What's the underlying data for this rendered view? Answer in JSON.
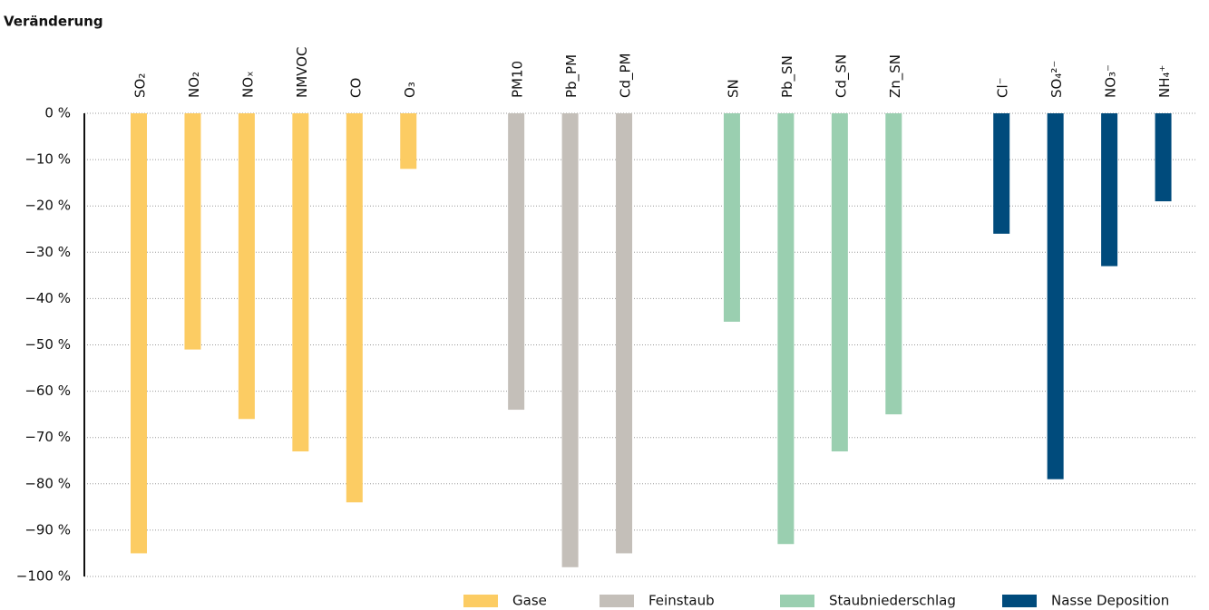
{
  "chart_data": {
    "type": "bar",
    "title": "Veränderung",
    "categories": [
      "SO₂",
      "NO₂",
      "NOₓ",
      "NMVOC",
      "CO",
      "O₃",
      null,
      "PM10",
      "Pb_PM",
      "Cd_PM",
      null,
      "SN",
      "Pb_SN",
      "Cd_SN",
      "Zn_SN",
      null,
      "Cl⁻",
      "SO₄²⁻",
      "NO₃⁻",
      "NH₄⁺"
    ],
    "series": [
      {
        "name": "Gase",
        "color": "#fccc63",
        "values": [
          -95,
          -51,
          -66,
          -73,
          -84,
          -12,
          null,
          null,
          null,
          null,
          null,
          null,
          null,
          null,
          null,
          null,
          null,
          null,
          null,
          null
        ]
      },
      {
        "name": "Feinstaub",
        "color": "#c4bfb9",
        "values": [
          null,
          null,
          null,
          null,
          null,
          null,
          null,
          -64,
          -98,
          -95,
          null,
          null,
          null,
          null,
          null,
          null,
          null,
          null,
          null,
          null
        ]
      },
      {
        "name": "Staubniederschlag",
        "color": "#9acfb0",
        "values": [
          null,
          null,
          null,
          null,
          null,
          null,
          null,
          null,
          null,
          null,
          null,
          -45,
          -93,
          -73,
          -65,
          null,
          null,
          null,
          null,
          null
        ]
      },
      {
        "name": "Nasse Deposition",
        "color": "#004b7c",
        "values": [
          null,
          null,
          null,
          null,
          null,
          null,
          null,
          null,
          null,
          null,
          null,
          null,
          null,
          null,
          null,
          null,
          -26,
          -79,
          -33,
          -19
        ]
      }
    ],
    "ylim": [
      -100,
      0
    ],
    "yticks": [
      {
        "value": 0,
        "label": "0 %"
      },
      {
        "value": -10,
        "label": "−10 %"
      },
      {
        "value": -20,
        "label": "−20 %"
      },
      {
        "value": -30,
        "label": "−30 %"
      },
      {
        "value": -40,
        "label": "−40 %"
      },
      {
        "value": -50,
        "label": "−50 %"
      },
      {
        "value": -60,
        "label": "−60 %"
      },
      {
        "value": -70,
        "label": "−70 %"
      },
      {
        "value": -80,
        "label": "−80 %"
      },
      {
        "value": -90,
        "label": "−90 %"
      },
      {
        "value": -100,
        "label": "−100 %"
      }
    ],
    "grid": true
  }
}
